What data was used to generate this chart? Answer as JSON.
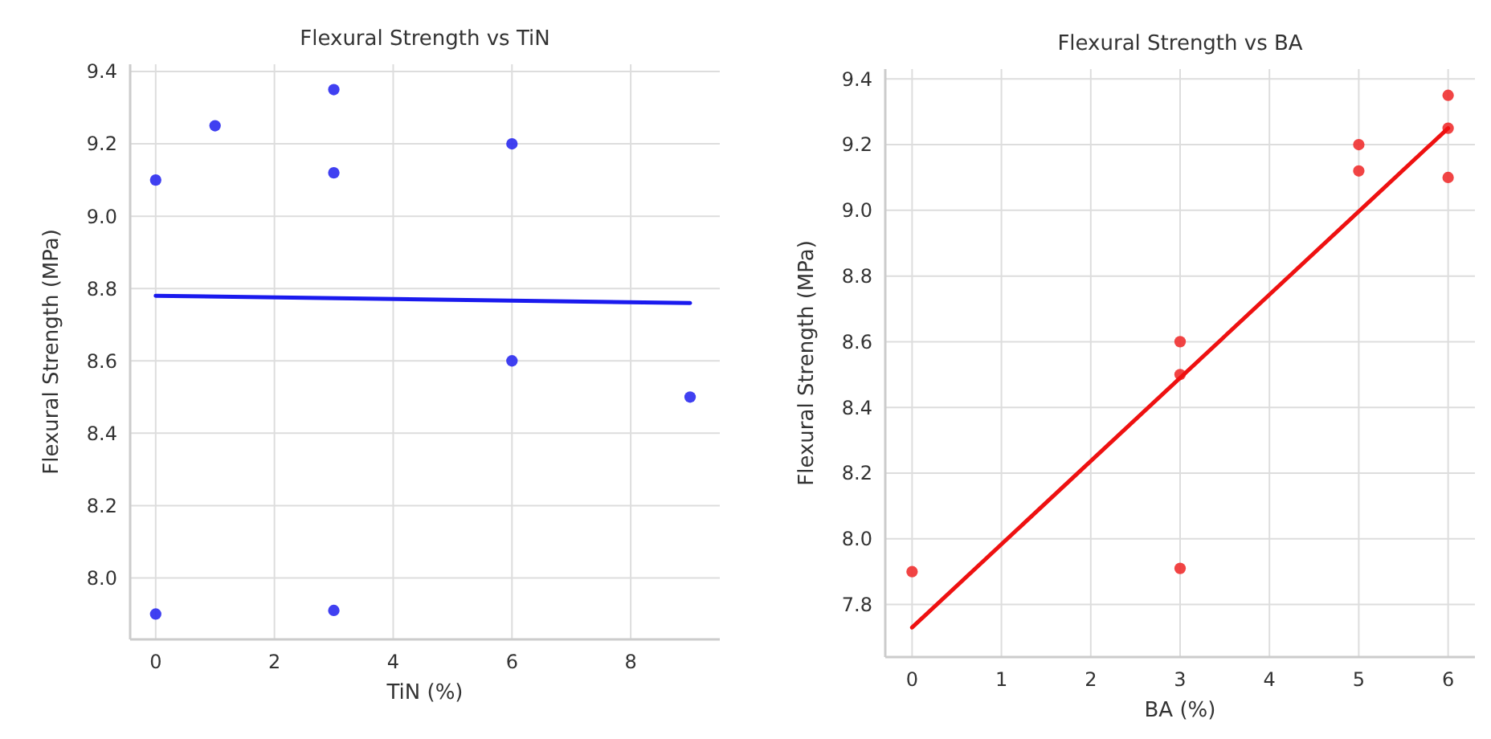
{
  "chart_data": [
    {
      "type": "scatter",
      "title": "Flexural Strength vs TiN",
      "xlabel": "TiN (%)",
      "ylabel": "Flexural Strength (MPa)",
      "xlim": [
        -0.43,
        9.5
      ],
      "xticks": [
        0,
        2,
        4,
        6,
        8
      ],
      "ylim": [
        7.83,
        9.42
      ],
      "yticks": [
        {
          "value": 8.0,
          "label": "8.0"
        },
        {
          "value": 8.2,
          "label": "8.2"
        },
        {
          "value": 8.4,
          "label": "8.4"
        },
        {
          "value": 8.6,
          "label": "8.6"
        },
        {
          "value": 8.8,
          "label": "8.8"
        },
        {
          "value": 9.0,
          "label": "9.0"
        },
        {
          "value": 9.2,
          "label": "9.2"
        },
        {
          "value": 9.4,
          "label": "9.4"
        }
      ],
      "grid": true,
      "series": [
        {
          "marker": "circle",
          "color": "#2b2bf0",
          "x": [
            0,
            1,
            3,
            3,
            6,
            0,
            3,
            6,
            9
          ],
          "values": [
            9.1,
            9.25,
            9.35,
            9.12,
            9.2,
            7.9,
            7.91,
            8.6,
            8.5
          ]
        },
        {
          "type": "line",
          "marker": "none",
          "color": "#1a1aee",
          "x": [
            0,
            9
          ],
          "values": [
            8.78,
            8.76
          ]
        }
      ]
    },
    {
      "type": "scatter",
      "title": "Flexural Strength vs BA",
      "xlabel": "BA (%)",
      "ylabel": "Flexural Strength (MPa)",
      "xlim": [
        -0.3,
        6.3
      ],
      "xticks": [
        0,
        1,
        2,
        3,
        4,
        5,
        6
      ],
      "ylim": [
        7.64,
        9.43
      ],
      "yticks": [
        {
          "value": 7.8,
          "label": "7.8"
        },
        {
          "value": 8.0,
          "label": "8.0"
        },
        {
          "value": 8.2,
          "label": "8.2"
        },
        {
          "value": 8.4,
          "label": "8.4"
        },
        {
          "value": 8.6,
          "label": "8.6"
        },
        {
          "value": 8.8,
          "label": "8.8"
        },
        {
          "value": 9.0,
          "label": "9.0"
        },
        {
          "value": 9.2,
          "label": "9.2"
        },
        {
          "value": 9.4,
          "label": "9.4"
        }
      ],
      "grid": true,
      "series": [
        {
          "marker": "circle",
          "color": "#f03030",
          "x": [
            0,
            3,
            3,
            3,
            5,
            5,
            6,
            6,
            6
          ],
          "values": [
            7.9,
            7.91,
            8.5,
            8.6,
            9.12,
            9.2,
            9.1,
            9.25,
            9.35
          ]
        },
        {
          "type": "line",
          "marker": "none",
          "color": "#ee1111",
          "x": [
            0,
            6
          ],
          "values": [
            7.73,
            9.25
          ]
        }
      ]
    }
  ]
}
